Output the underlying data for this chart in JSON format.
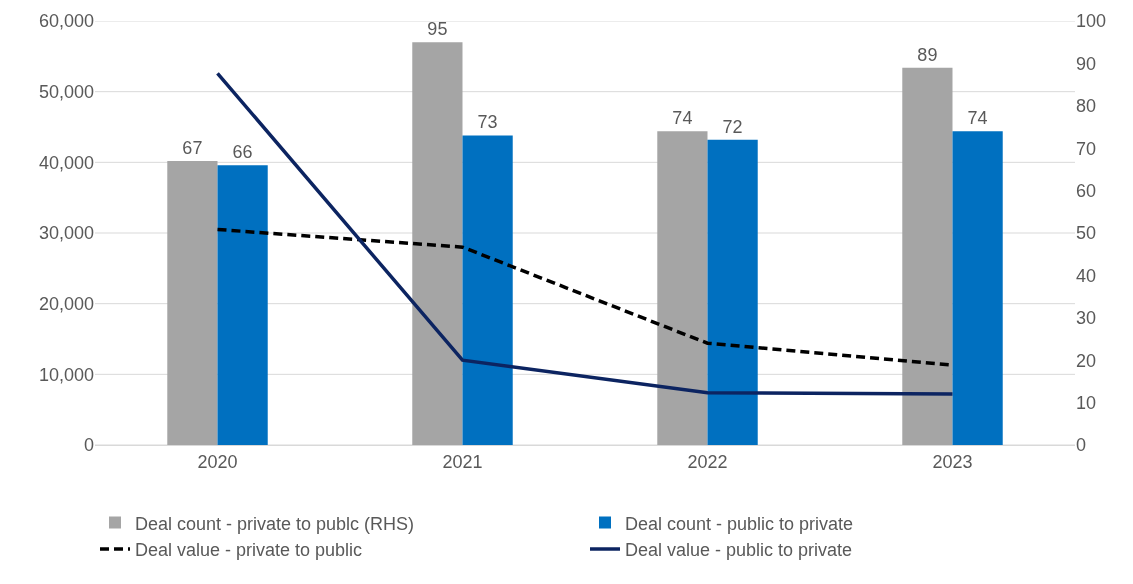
{
  "chart_data": {
    "type": "bar",
    "categories": [
      "2020",
      "2021",
      "2022",
      "2023"
    ],
    "series": [
      {
        "name": "Deal count - private to publc (RHS)",
        "axis": "y2",
        "color": "#a5a5a5",
        "values": [
          67,
          95,
          74,
          89
        ],
        "value_labels": [
          "67",
          "95",
          "74",
          "89"
        ]
      },
      {
        "name": "Deal count - public to private",
        "axis": "y2",
        "color": "#0070c0",
        "values": [
          66,
          73,
          72,
          74
        ],
        "value_labels": [
          "66",
          "73",
          "72",
          "74"
        ]
      },
      {
        "name": "Deal value - private to public",
        "type": "line",
        "color": "#000000",
        "line_style": "dashed",
        "values": [
          30500,
          28000,
          14400,
          11300
        ]
      },
      {
        "name": "Deal value - public to private",
        "type": "line",
        "color": "#0c2461",
        "line_style": "solid",
        "values": [
          52600,
          12000,
          7400,
          7200
        ]
      }
    ],
    "ylim": [
      0,
      60000
    ],
    "yticks": [
      0,
      {
        "value": 10000,
        "label": "10,000"
      },
      {
        "value": 20000,
        "label": "20,000"
      },
      {
        "value": 30000,
        "label": "30,000"
      },
      {
        "value": 40000,
        "label": "40,000"
      },
      {
        "value": 50000,
        "label": "50,000"
      },
      {
        "value": 60000,
        "label": "60,000"
      }
    ],
    "y2lim": [
      0,
      100
    ],
    "y2ticks": [
      0,
      10,
      20,
      30,
      40,
      50,
      60,
      70,
      80,
      90,
      100
    ],
    "grid": "y",
    "legend": "bottom",
    "marker": "none"
  }
}
